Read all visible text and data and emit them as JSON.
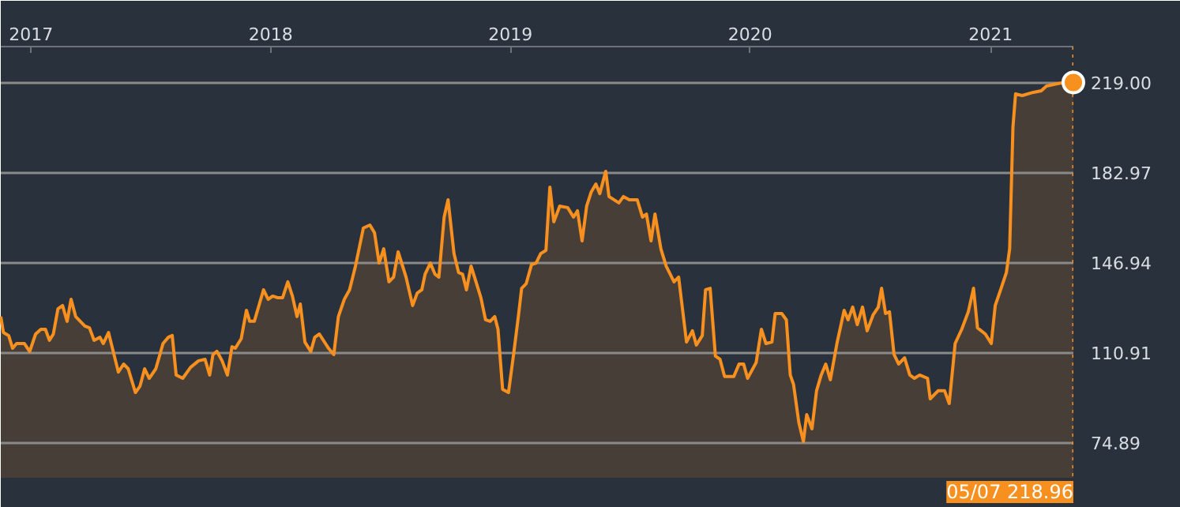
{
  "chart_data": {
    "type": "area",
    "x": [
      "2016-11-16",
      "2016-11-20",
      "2016-11-28",
      "2016-12-04",
      "2016-12-10",
      "2016-12-22",
      "2016-12-30",
      "2017-01-08",
      "2017-01-16",
      "2017-01-23",
      "2017-01-29",
      "2017-02-04",
      "2017-02-11",
      "2017-02-18",
      "2017-02-25",
      "2017-03-03",
      "2017-03-10",
      "2017-03-24",
      "2017-03-31",
      "2017-04-07",
      "2017-04-16",
      "2017-04-21",
      "2017-04-29",
      "2017-05-14",
      "2017-05-22",
      "2017-05-29",
      "2017-06-09",
      "2017-06-16",
      "2017-06-23",
      "2017-06-30",
      "2017-07-10",
      "2017-07-21",
      "2017-07-29",
      "2017-08-04",
      "2017-08-10",
      "2017-08-20",
      "2017-09-01",
      "2017-09-13",
      "2017-09-23",
      "2017-09-30",
      "2017-10-05",
      "2017-10-11",
      "2017-10-19",
      "2017-10-27",
      "2017-11-03",
      "2017-11-08",
      "2017-11-17",
      "2017-11-25",
      "2017-11-30",
      "2017-12-07",
      "2017-12-21",
      "2017-12-28",
      "2018-01-04",
      "2018-01-12",
      "2018-01-19",
      "2018-01-27",
      "2018-02-03",
      "2018-02-10",
      "2018-02-15",
      "2018-02-22",
      "2018-03-03",
      "2018-03-09",
      "2018-03-16",
      "2018-03-30",
      "2018-04-07",
      "2018-04-14",
      "2018-04-23",
      "2018-05-01",
      "2018-05-10",
      "2018-05-22",
      "2018-06-01",
      "2018-06-08",
      "2018-06-15",
      "2018-06-22",
      "2018-06-30",
      "2018-07-07",
      "2018-07-14",
      "2018-07-26",
      "2018-08-05",
      "2018-08-12",
      "2018-08-19",
      "2018-08-24",
      "2018-09-01",
      "2018-09-08",
      "2018-09-14",
      "2018-09-22",
      "2018-09-28",
      "2018-10-07",
      "2018-10-14",
      "2018-10-20",
      "2018-10-26",
      "2018-11-02",
      "2018-11-11",
      "2018-11-17",
      "2018-11-24",
      "2018-12-01",
      "2018-12-08",
      "2018-12-13",
      "2018-12-20",
      "2018-12-29",
      "2019-01-06",
      "2019-01-13",
      "2019-01-18",
      "2019-01-25",
      "2019-02-02",
      "2019-02-09",
      "2019-02-16",
      "2019-02-24",
      "2019-03-02",
      "2019-03-08",
      "2019-03-17",
      "2019-03-29",
      "2019-04-07",
      "2019-04-13",
      "2019-04-20",
      "2019-04-27",
      "2019-05-04",
      "2019-05-11",
      "2019-05-17",
      "2019-05-26",
      "2019-05-31",
      "2019-06-15",
      "2019-06-22",
      "2019-07-01",
      "2019-07-13",
      "2019-07-21",
      "2019-07-27",
      "2019-08-03",
      "2019-08-09",
      "2019-08-18",
      "2019-08-26",
      "2019-09-07",
      "2019-09-14",
      "2019-09-26",
      "2019-10-05",
      "2019-10-11",
      "2019-10-20",
      "2019-10-25",
      "2019-11-01",
      "2019-11-09",
      "2019-11-16",
      "2019-11-23",
      "2019-12-07",
      "2019-12-15",
      "2019-12-22",
      "2019-12-28",
      "2020-01-10",
      "2020-01-18",
      "2020-01-25",
      "2020-02-03",
      "2020-02-08",
      "2020-02-18",
      "2020-02-25",
      "2020-03-02",
      "2020-03-07",
      "2020-03-15",
      "2020-03-22",
      "2020-03-27",
      "2020-04-04",
      "2020-04-11",
      "2020-04-18",
      "2020-04-25",
      "2020-05-02",
      "2020-05-12",
      "2020-05-23",
      "2020-05-29",
      "2020-06-05",
      "2020-06-12",
      "2020-06-20",
      "2020-06-27",
      "2020-07-06",
      "2020-07-14",
      "2020-07-19",
      "2020-07-25",
      "2020-07-31",
      "2020-08-07",
      "2020-08-14",
      "2020-08-23",
      "2020-08-31",
      "2020-09-07",
      "2020-09-15",
      "2020-09-27",
      "2020-10-01",
      "2020-10-13",
      "2020-10-23",
      "2020-10-30",
      "2020-11-08",
      "2020-11-18",
      "2020-11-28",
      "2020-12-06",
      "2020-12-12",
      "2020-12-24",
      "2021-01-02",
      "2021-01-08",
      "2021-01-17",
      "2021-01-25",
      "2021-01-30",
      "2021-02-04",
      "2021-02-08",
      "2021-02-18",
      "2021-03-07",
      "2021-03-19",
      "2021-03-27",
      "2021-04-08",
      "2021-04-20",
      "2021-05-07"
    ],
    "series": [
      {
        "color": "#f7901e",
        "values": [
          125.3,
          118.9,
          117.7,
          112.6,
          114.5,
          114.5,
          111.3,
          118.3,
          120.2,
          120.2,
          115.8,
          118.3,
          128.4,
          129.7,
          123.4,
          132.2,
          125.3,
          121.5,
          120.8,
          115.8,
          117.0,
          114.5,
          118.9,
          103.1,
          106.3,
          104.4,
          94.9,
          97.5,
          104.4,
          100.6,
          104.4,
          114.5,
          117.0,
          117.7,
          101.9,
          100.6,
          105.0,
          107.6,
          108.2,
          101.9,
          110.1,
          111.4,
          107.6,
          101.9,
          113.2,
          112.6,
          116.4,
          127.8,
          123.4,
          123.4,
          136.0,
          132.2,
          133.5,
          132.8,
          132.8,
          139.2,
          133.5,
          125.3,
          130.3,
          115.1,
          111.3,
          117.0,
          118.3,
          112.6,
          110.1,
          125.3,
          132.2,
          136.0,
          145.5,
          160.7,
          161.9,
          158.8,
          146.7,
          152.4,
          139.2,
          141.1,
          151.2,
          141.1,
          129.7,
          134.7,
          136.0,
          142.3,
          146.7,
          142.3,
          141.1,
          165.1,
          172.0,
          150.5,
          142.9,
          142.3,
          136.0,
          145.5,
          137.9,
          132.8,
          124.0,
          123.4,
          125.3,
          120.2,
          96.2,
          94.9,
          110.7,
          125.3,
          136.6,
          138.5,
          146.1,
          146.7,
          150.5,
          151.8,
          177.1,
          163.2,
          169.5,
          168.9,
          165.1,
          167.6,
          155.6,
          169.5,
          175.2,
          178.3,
          174.5,
          183.4,
          173.3,
          170.8,
          173.3,
          172.0,
          172.0,
          165.1,
          166.3,
          155.6,
          166.3,
          152.4,
          145.5,
          139.2,
          141.1,
          115.1,
          119.6,
          113.9,
          117.7,
          136.0,
          136.6,
          109.5,
          108.2,
          101.3,
          101.3,
          106.3,
          106.3,
          100.6,
          106.9,
          120.2,
          114.5,
          115.1,
          126.5,
          126.5,
          124.0,
          101.9,
          98.1,
          82.9,
          75.3,
          86.1,
          80.4,
          95.6,
          101.9,
          106.3,
          100.0,
          114.5,
          127.8,
          124.0,
          129.1,
          122.1,
          129.1,
          119.6,
          125.9,
          129.1,
          136.6,
          126.5,
          127.2,
          110.1,
          106.3,
          108.8,
          101.9,
          100.6,
          101.9,
          100.6,
          92.4,
          95.6,
          95.6,
          90.5,
          114.5,
          120.2,
          127.2,
          136.6,
          120.8,
          118.3,
          114.5,
          129.7,
          136.6,
          142.9,
          152.4,
          201.1,
          214.4,
          213.7,
          215.0,
          215.6,
          217.5,
          218.2,
          218.8,
          218.96
        ]
      }
    ],
    "xlim": [
      "2016-11-16",
      "2021-05-07"
    ],
    "xticks": [
      {
        "value": "2017-01-01",
        "label": "2017"
      },
      {
        "value": "2018-01-01",
        "label": "2018"
      },
      {
        "value": "2019-01-01",
        "label": "2019"
      },
      {
        "value": "2020-01-01",
        "label": "2020"
      },
      {
        "value": "2021-01-01",
        "label": "2021"
      }
    ],
    "ylim": [
      60.8,
      233.3
    ],
    "yticks": [
      74.89,
      110.91,
      146.94,
      182.97,
      {
        "value": 219,
        "label": "219.00"
      }
    ],
    "grid": "y",
    "ref_lines": [
      {
        "axis": "x",
        "value": "2021-05-07",
        "color": "#f7901e",
        "line_style": "dotted"
      }
    ],
    "annotations": [
      "05/07 218.96"
    ]
  }
}
